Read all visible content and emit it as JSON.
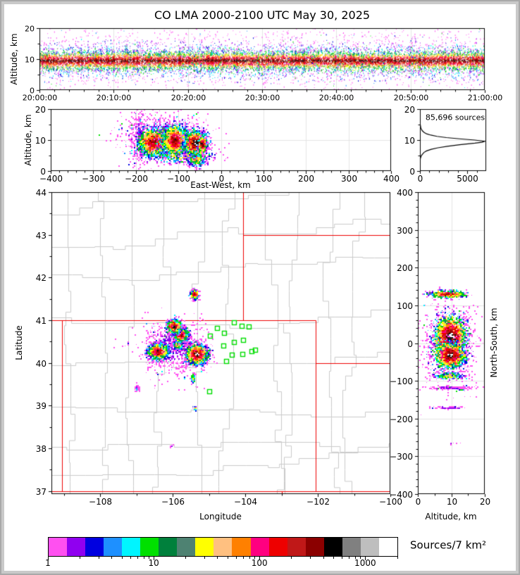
{
  "title": "CO LMA 2000-2100 UTC May 30, 2025",
  "style_colors": {
    "state_border": "#ee0000",
    "county_border": "#cacaca",
    "station_marker": "#00dd00",
    "profile_curve": "#000000",
    "grid": "#e4e4e4",
    "window_frame": "#c9c9c9"
  },
  "chart_data": [
    {
      "id": "time_height",
      "type": "scatter",
      "xlabel": "",
      "ylabel": "Altitude, km",
      "x_range": [
        0,
        3600
      ],
      "x_tick_values": [
        0,
        600,
        1200,
        1800,
        2400,
        3000,
        3600
      ],
      "x_tick_labels": [
        "20:00:00",
        "20:10:00",
        "20:20:00",
        "20:30:00",
        "20:40:00",
        "20:50:00",
        "21:00:00"
      ],
      "x_minor_step": 120,
      "y_range": [
        0,
        20
      ],
      "y_tick_values": [
        0,
        10,
        20
      ],
      "y_tick_labels": [
        "0",
        "10",
        "20"
      ],
      "y_minor": [
        5,
        15
      ],
      "clusters": [
        {
          "style": "mag",
          "dist": "uniformx",
          "n": 2200,
          "cy": 10.0,
          "sy": 5.2
        },
        {
          "style": "mid",
          "dist": "uniformx",
          "n": 3600,
          "cy": 9.5,
          "sy": 3.2
        },
        {
          "style": "hot",
          "dist": "uniformx",
          "n": 9000,
          "cy": 9.6,
          "sy": 1.5
        },
        {
          "style": "streaks",
          "n": 120,
          "cy": 9.7,
          "sy": 3.2
        }
      ]
    },
    {
      "id": "ew_height",
      "type": "scatter",
      "xlabel": "East-West, km",
      "ylabel": "Altitude, km",
      "x_range": [
        -400,
        400
      ],
      "x_tick_values": [
        -400,
        -300,
        -200,
        -100,
        0,
        100,
        200,
        300,
        400
      ],
      "x_tick_labels": [
        "−400",
        "−300",
        "−200",
        "−100",
        "0",
        "100",
        "200",
        "300",
        "400"
      ],
      "x_minor_step": 20,
      "y_range": [
        0,
        20
      ],
      "y_tick_values": [
        0,
        10,
        20
      ],
      "y_tick_labels": [
        "0",
        "10",
        "20"
      ],
      "y_minor": [
        5,
        15
      ],
      "clusters": [
        {
          "style": "mag",
          "n": 650,
          "cx": -140,
          "cy": 12.0,
          "sx": 52,
          "sy": 3.5
        },
        {
          "style": "mag",
          "n": 260,
          "cx": -193,
          "cy": 11.0,
          "sx": 10,
          "sy": 4.5
        },
        {
          "style": "mid",
          "n": 700,
          "cx": -95,
          "cy": 5.5,
          "sx": 38,
          "sy": 1.4
        },
        {
          "style": "mid",
          "n": 400,
          "cx": -60,
          "cy": 4.2,
          "sx": 12,
          "sy": 1.3
        },
        {
          "style": "hot",
          "n": 1800,
          "cx": -160,
          "cy": 9.5,
          "sx": 18,
          "sy": 2.2
        },
        {
          "style": "hot",
          "n": 2200,
          "cx": -110,
          "cy": 10.0,
          "sx": 15,
          "sy": 2.4
        },
        {
          "style": "core",
          "n": 2600,
          "cx": -62,
          "cy": 9.3,
          "sx": 12,
          "sy": 1.8
        },
        {
          "style": "core",
          "n": 300,
          "cx": -45,
          "cy": 8.8,
          "sx": 5,
          "sy": 1.2
        }
      ]
    },
    {
      "id": "altitude_histogram",
      "type": "line",
      "annotation": "85,696 sources",
      "xlabel": "",
      "ylabel": "",
      "x_range": [
        0,
        7000
      ],
      "x_tick_values": [
        0,
        5000
      ],
      "x_tick_labels": [
        "0",
        "5000"
      ],
      "x_minor": [
        1000,
        2000,
        3000,
        4000,
        6000
      ],
      "y_range": [
        0,
        20
      ],
      "y_tick_values": [
        0,
        10,
        20
      ],
      "y_tick_labels": [
        "0",
        "10",
        "20"
      ],
      "y_minor": [
        5,
        15
      ],
      "profile": [
        [
          0,
          0
        ],
        [
          2,
          5
        ],
        [
          4,
          40
        ],
        [
          5,
          150
        ],
        [
          6,
          420
        ],
        [
          6.5,
          700
        ],
        [
          7,
          1200
        ],
        [
          7.5,
          1900
        ],
        [
          8,
          2900
        ],
        [
          8.5,
          4200
        ],
        [
          9,
          5800
        ],
        [
          9.3,
          6550
        ],
        [
          9.6,
          6850
        ],
        [
          10,
          5800
        ],
        [
          10.4,
          4200
        ],
        [
          10.8,
          2800
        ],
        [
          11.2,
          1800
        ],
        [
          11.6,
          1150
        ],
        [
          12,
          700
        ],
        [
          12.5,
          420
        ],
        [
          13,
          250
        ],
        [
          13.5,
          150
        ],
        [
          14,
          90
        ],
        [
          15,
          35
        ],
        [
          16,
          12
        ],
        [
          18,
          3
        ],
        [
          20,
          0
        ]
      ]
    },
    {
      "id": "map",
      "type": "scatter",
      "xlabel": "Longitude",
      "ylabel": "Latitude",
      "x_range": [
        -109.34,
        -100
      ],
      "x_tick_values": [
        -108,
        -106,
        -104,
        -102,
        -100
      ],
      "x_tick_labels": [
        "−108",
        "−106",
        "−104",
        "−102",
        "−100"
      ],
      "x_minor": [
        -109,
        -107,
        -105,
        -103,
        -101
      ],
      "y_range": [
        36.93,
        44
      ],
      "y_tick_values": [
        37,
        38,
        39,
        40,
        41,
        42,
        43,
        44
      ],
      "y_tick_labels": [
        "37",
        "38",
        "39",
        "40",
        "41",
        "42",
        "43",
        "44"
      ],
      "y_minor": [
        37.5,
        38.5,
        39.5,
        40.5,
        41.5,
        42.5,
        43.5
      ],
      "county_grid_seed": 11,
      "state_borders": [
        [
          [
            -109.34,
            41
          ],
          [
            -102.05,
            41
          ]
        ],
        [
          [
            -109.05,
            41
          ],
          [
            -109.05,
            37
          ]
        ],
        [
          [
            -109.34,
            37
          ],
          [
            -100,
            37
          ]
        ],
        [
          [
            -102.05,
            41
          ],
          [
            -102.05,
            37
          ]
        ],
        [
          [
            -104.05,
            44
          ],
          [
            -104.05,
            41
          ]
        ],
        [
          [
            -104.05,
            43
          ],
          [
            -100,
            43
          ]
        ],
        [
          [
            -102.05,
            40
          ],
          [
            -100,
            40
          ]
        ],
        [
          [
            -103.0,
            37
          ],
          [
            -103.0,
            36.93
          ]
        ]
      ],
      "stations": [
        [
          -104.31,
          40.95
        ],
        [
          -104.1,
          40.87
        ],
        [
          -103.9,
          40.85
        ],
        [
          -104.78,
          40.82
        ],
        [
          -104.58,
          40.71
        ],
        [
          -104.97,
          40.64
        ],
        [
          -104.06,
          40.54
        ],
        [
          -104.31,
          40.49
        ],
        [
          -104.6,
          40.41
        ],
        [
          -103.73,
          40.31
        ],
        [
          -103.83,
          40.27
        ],
        [
          -104.37,
          40.19
        ],
        [
          -104.08,
          40.21
        ],
        [
          -104.52,
          40.05
        ],
        [
          -104.99,
          39.34
        ]
      ],
      "clusters": [
        {
          "style": "mag",
          "n": 800,
          "cx": -106.0,
          "cy": 40.4,
          "sx": 0.45,
          "sy": 0.33
        },
        {
          "style": "mag",
          "n": 70,
          "cx": -107.0,
          "cy": 39.42,
          "sx": 0.03,
          "sy": 0.03
        },
        {
          "style": "mag",
          "n": 12,
          "cx": -106.05,
          "cy": 38.08,
          "sx": 0.02,
          "sy": 0.02
        },
        {
          "style": "mid",
          "n": 500,
          "cx": -105.85,
          "cy": 40.44,
          "sx": 0.08,
          "sy": 0.06
        },
        {
          "style": "mid",
          "n": 160,
          "cx": -105.45,
          "cy": 39.65,
          "sx": 0.03,
          "sy": 0.05
        },
        {
          "style": "mid",
          "n": 40,
          "cx": -105.4,
          "cy": 38.95,
          "sx": 0.02,
          "sy": 0.03
        },
        {
          "style": "hot",
          "n": 1800,
          "cx": -106.42,
          "cy": 40.28,
          "sx": 0.13,
          "sy": 0.09
        },
        {
          "style": "hot",
          "n": 1600,
          "cx": -105.78,
          "cy": 40.67,
          "sx": 0.09,
          "sy": 0.08
        },
        {
          "style": "hot",
          "n": 420,
          "cx": -105.42,
          "cy": 41.62,
          "sx": 0.05,
          "sy": 0.05
        },
        {
          "style": "core",
          "n": 1400,
          "cx": -105.98,
          "cy": 40.87,
          "sx": 0.09,
          "sy": 0.07
        },
        {
          "style": "core",
          "n": 2600,
          "cx": -105.35,
          "cy": 40.22,
          "sx": 0.14,
          "sy": 0.11
        }
      ]
    },
    {
      "id": "ns_height",
      "type": "scatter",
      "xlabel": "Altitude, km",
      "ylabel": "North-South, km",
      "x_range": [
        0,
        20
      ],
      "x_tick_values": [
        0,
        10,
        20
      ],
      "x_tick_labels": [
        "0",
        "10",
        "20"
      ],
      "x_minor": [
        5,
        15
      ],
      "y_range": [
        -400,
        400
      ],
      "y_tick_values": [
        -400,
        -300,
        -200,
        -100,
        0,
        100,
        200,
        300,
        400
      ],
      "y_tick_labels": [
        "−400",
        "−300",
        "−200",
        "−100",
        "0",
        "100",
        "200",
        "300",
        "400"
      ],
      "y_minor_step": 20,
      "clusters": [
        {
          "style": "mag",
          "n": 700,
          "cx": 9.5,
          "cy": -5,
          "sx": 4.5,
          "sy": 55
        },
        {
          "style": "mag",
          "n": 150,
          "cx": 9.5,
          "cy": -117,
          "sx": 3.5,
          "sy": 2
        },
        {
          "style": "mag",
          "n": 70,
          "cx": 9.0,
          "cy": -170,
          "sx": 3.0,
          "sy": 2
        },
        {
          "style": "mag",
          "n": 6,
          "cx": 10.0,
          "cy": -265,
          "sx": 1.0,
          "sy": 1
        },
        {
          "style": "mid",
          "n": 300,
          "cx": 9.0,
          "cy": -85,
          "sx": 2.2,
          "sy": 4.5
        },
        {
          "style": "hot",
          "n": 560,
          "cx": 8.8,
          "cy": 131,
          "sx": 2.6,
          "sy": 4.5
        },
        {
          "style": "core",
          "n": 2600,
          "cx": 9.6,
          "cy": 20,
          "sx": 2.3,
          "sy": 26
        },
        {
          "style": "core",
          "n": 2000,
          "cx": 9.4,
          "cy": -30,
          "sx": 2.2,
          "sy": 16
        }
      ]
    },
    {
      "id": "colorbar",
      "type": "colorbar-legend",
      "label": "Sources/7 km²",
      "scale": "log",
      "range": [
        1,
        2046
      ],
      "tick_values": [
        1,
        10,
        100,
        1000
      ],
      "tick_labels": [
        "1",
        "10",
        "100",
        "1000"
      ],
      "segment_colors": [
        "#ff50f0",
        "#9000f0",
        "#0000e0",
        "#1e90ff",
        "#00f5ff",
        "#00e000",
        "#00803c",
        "#4e8272",
        "#ffff00",
        "#ffc080",
        "#ff8000",
        "#ff0080",
        "#ee0000",
        "#c01818",
        "#8b0000",
        "#000000",
        "#808080",
        "#bebebe",
        "#ffffff"
      ]
    }
  ]
}
